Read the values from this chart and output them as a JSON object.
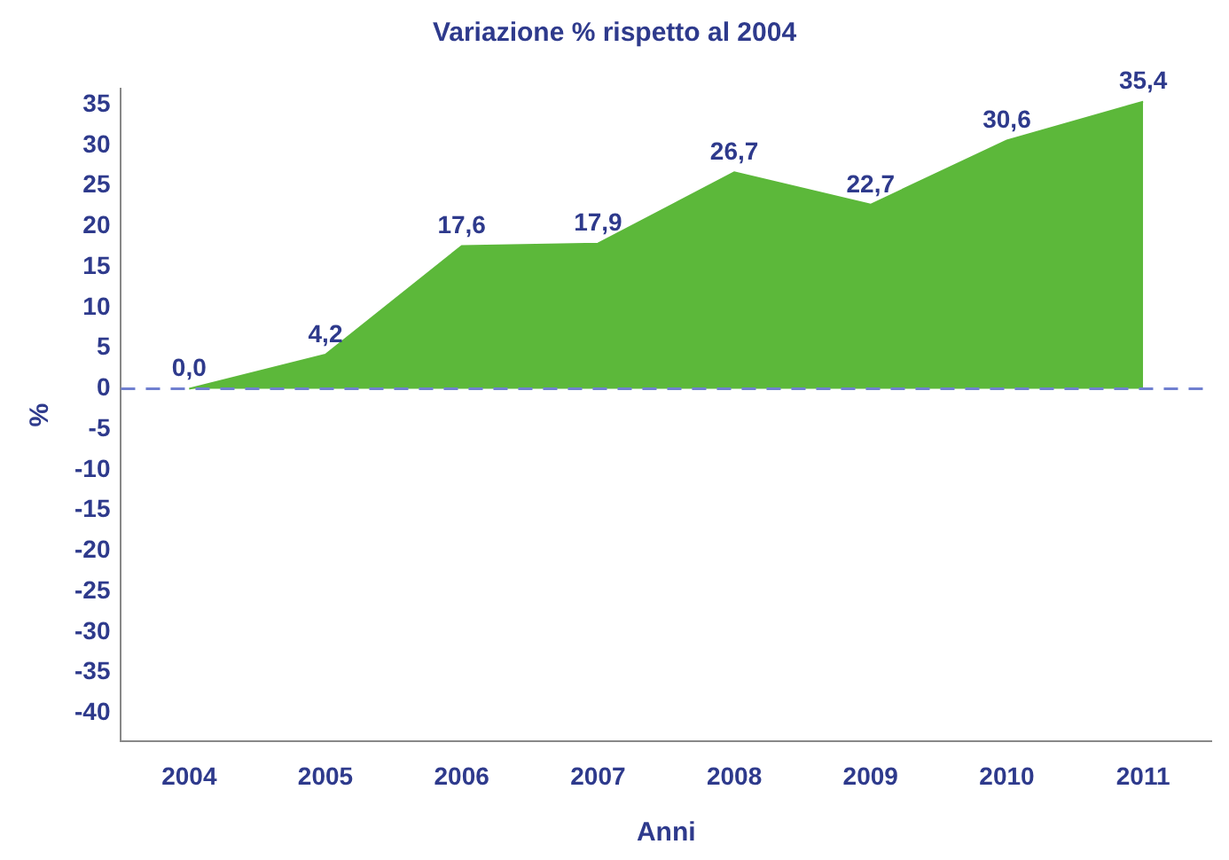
{
  "chart_data": {
    "type": "area",
    "title": "Variazione % rispetto al 2004",
    "xlabel": "Anni",
    "ylabel": "%",
    "categories": [
      "2004",
      "2005",
      "2006",
      "2007",
      "2008",
      "2009",
      "2010",
      "2011"
    ],
    "series": [
      {
        "color": "#5cb83a",
        "values": [
          0.0,
          4.2,
          17.6,
          17.9,
          26.7,
          22.7,
          30.6,
          35.4
        ],
        "value_labels": [
          "0,0",
          "4,2",
          "17,6",
          "17,9",
          "26,7",
          "22,7",
          "30,6",
          "35,4"
        ]
      }
    ],
    "ylim": [
      -43.5,
      37
    ],
    "yticks": [
      -40,
      -35,
      -30,
      -25,
      -20,
      -15,
      -10,
      -5,
      0,
      5,
      10,
      15,
      20,
      25,
      30,
      35
    ],
    "ref_lines": [
      {
        "axis": "y",
        "value": 0,
        "color": "#7080d0",
        "line_style": "dashed"
      }
    ],
    "grid": false,
    "legend": false
  }
}
